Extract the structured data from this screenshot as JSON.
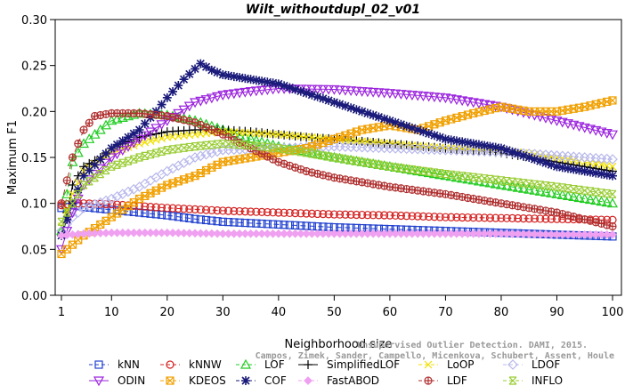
{
  "chart_data": {
    "type": "line",
    "title": "Wilt_withoutdupl_02_v01",
    "xlabel": "Neighborhood size",
    "ylabel": "Maximum F1",
    "xlim": [
      1,
      100
    ],
    "ylim": [
      0,
      0.3
    ],
    "xticks": [
      "1",
      "10",
      "20",
      "30",
      "40",
      "50",
      "60",
      "70",
      "80",
      "90",
      "100"
    ],
    "yticks": [
      "0.00",
      "0.05",
      "0.10",
      "0.15",
      "0.20",
      "0.25",
      "0.30"
    ],
    "grid": false,
    "legend_position": "bottom",
    "watermark": [
      "Unsupervised Outlier Detection. DAMI, 2015.",
      "Campos, Zimek, Sander, Campello, Micenkova, Schubert, Assent, Houle"
    ],
    "series": [
      {
        "name": "kNN",
        "color": "#1f3fcf",
        "dash": "6,4",
        "marker": "square",
        "points": [
          [
            1,
            0.095
          ],
          [
            2,
            0.096
          ],
          [
            3,
            0.098
          ],
          [
            5,
            0.096
          ],
          [
            10,
            0.093
          ],
          [
            15,
            0.09
          ],
          [
            20,
            0.087
          ],
          [
            25,
            0.083
          ],
          [
            30,
            0.08
          ],
          [
            40,
            0.077
          ],
          [
            50,
            0.074
          ],
          [
            60,
            0.072
          ],
          [
            70,
            0.07
          ],
          [
            80,
            0.068
          ],
          [
            90,
            0.066
          ],
          [
            100,
            0.064
          ]
        ]
      },
      {
        "name": "kNNW",
        "color": "#d42020",
        "dash": "6,4",
        "marker": "circle",
        "points": [
          [
            1,
            0.098
          ],
          [
            2,
            0.099
          ],
          [
            3,
            0.1
          ],
          [
            5,
            0.1
          ],
          [
            10,
            0.099
          ],
          [
            15,
            0.097
          ],
          [
            20,
            0.095
          ],
          [
            30,
            0.092
          ],
          [
            40,
            0.09
          ],
          [
            50,
            0.088
          ],
          [
            60,
            0.087
          ],
          [
            70,
            0.085
          ],
          [
            80,
            0.084
          ],
          [
            90,
            0.083
          ],
          [
            100,
            0.082
          ]
        ]
      },
      {
        "name": "LOF",
        "color": "#22cc22",
        "dash": "6,4",
        "marker": "triangle",
        "points": [
          [
            1,
            0.07
          ],
          [
            2,
            0.11
          ],
          [
            3,
            0.145
          ],
          [
            5,
            0.165
          ],
          [
            8,
            0.18
          ],
          [
            10,
            0.19
          ],
          [
            15,
            0.198
          ],
          [
            20,
            0.196
          ],
          [
            25,
            0.19
          ],
          [
            30,
            0.18
          ],
          [
            35,
            0.17
          ],
          [
            40,
            0.162
          ],
          [
            50,
            0.15
          ],
          [
            60,
            0.14
          ],
          [
            70,
            0.13
          ],
          [
            80,
            0.12
          ],
          [
            90,
            0.11
          ],
          [
            100,
            0.1
          ]
        ]
      },
      {
        "name": "SimplifiedLOF",
        "color": "#000000",
        "dash": "",
        "marker": "plus",
        "points": [
          [
            1,
            0.065
          ],
          [
            2,
            0.09
          ],
          [
            3,
            0.12
          ],
          [
            5,
            0.14
          ],
          [
            8,
            0.15
          ],
          [
            10,
            0.16
          ],
          [
            15,
            0.172
          ],
          [
            20,
            0.178
          ],
          [
            25,
            0.18
          ],
          [
            30,
            0.18
          ],
          [
            35,
            0.178
          ],
          [
            40,
            0.175
          ],
          [
            45,
            0.172
          ],
          [
            50,
            0.17
          ],
          [
            60,
            0.165
          ],
          [
            70,
            0.16
          ],
          [
            80,
            0.155
          ],
          [
            90,
            0.145
          ],
          [
            100,
            0.135
          ]
        ]
      },
      {
        "name": "LoOP",
        "color": "#f0e000",
        "dash": "6,4",
        "marker": "cross",
        "points": [
          [
            1,
            0.075
          ],
          [
            3,
            0.11
          ],
          [
            5,
            0.135
          ],
          [
            10,
            0.155
          ],
          [
            15,
            0.165
          ],
          [
            20,
            0.172
          ],
          [
            30,
            0.178
          ],
          [
            40,
            0.175
          ],
          [
            50,
            0.17
          ],
          [
            60,
            0.165
          ],
          [
            70,
            0.16
          ],
          [
            80,
            0.158
          ],
          [
            90,
            0.15
          ],
          [
            100,
            0.14
          ]
        ]
      },
      {
        "name": "LDOF",
        "color": "#b8b8ec",
        "dash": "6,4",
        "marker": "diamond",
        "points": [
          [
            1,
            0.07
          ],
          [
            3,
            0.085
          ],
          [
            5,
            0.095
          ],
          [
            10,
            0.105
          ],
          [
            15,
            0.118
          ],
          [
            20,
            0.135
          ],
          [
            25,
            0.15
          ],
          [
            30,
            0.158
          ],
          [
            40,
            0.16
          ],
          [
            50,
            0.162
          ],
          [
            60,
            0.16
          ],
          [
            70,
            0.158
          ],
          [
            80,
            0.156
          ],
          [
            90,
            0.152
          ],
          [
            100,
            0.148
          ]
        ]
      },
      {
        "name": "ODIN",
        "color": "#9a22dd",
        "dash": "",
        "marker": "invtriangle",
        "points": [
          [
            1,
            0.05
          ],
          [
            3,
            0.09
          ],
          [
            5,
            0.12
          ],
          [
            10,
            0.15
          ],
          [
            15,
            0.17
          ],
          [
            20,
            0.19
          ],
          [
            25,
            0.21
          ],
          [
            30,
            0.218
          ],
          [
            35,
            0.222
          ],
          [
            40,
            0.225
          ],
          [
            50,
            0.224
          ],
          [
            60,
            0.22
          ],
          [
            70,
            0.215
          ],
          [
            80,
            0.205
          ],
          [
            90,
            0.19
          ],
          [
            100,
            0.175
          ]
        ]
      },
      {
        "name": "KDEOS",
        "color": "#f0a000",
        "dash": "6,4",
        "marker": "squarex",
        "points": [
          [
            1,
            0.045
          ],
          [
            3,
            0.055
          ],
          [
            5,
            0.065
          ],
          [
            10,
            0.085
          ],
          [
            15,
            0.105
          ],
          [
            20,
            0.12
          ],
          [
            25,
            0.13
          ],
          [
            30,
            0.145
          ],
          [
            35,
            0.15
          ],
          [
            40,
            0.155
          ],
          [
            45,
            0.16
          ],
          [
            50,
            0.17
          ],
          [
            55,
            0.18
          ],
          [
            60,
            0.185
          ],
          [
            65,
            0.18
          ],
          [
            70,
            0.19
          ],
          [
            75,
            0.198
          ],
          [
            80,
            0.205
          ],
          [
            85,
            0.2
          ],
          [
            90,
            0.2
          ],
          [
            95,
            0.205
          ],
          [
            100,
            0.212
          ]
        ]
      },
      {
        "name": "COF",
        "color": "#1a1a7a",
        "dash": "6,4",
        "marker": "star",
        "points": [
          [
            1,
            0.065
          ],
          [
            3,
            0.1
          ],
          [
            5,
            0.13
          ],
          [
            10,
            0.16
          ],
          [
            15,
            0.18
          ],
          [
            18,
            0.2
          ],
          [
            20,
            0.215
          ],
          [
            23,
            0.235
          ],
          [
            26,
            0.252
          ],
          [
            28,
            0.245
          ],
          [
            30,
            0.24
          ],
          [
            35,
            0.235
          ],
          [
            40,
            0.23
          ],
          [
            45,
            0.22
          ],
          [
            50,
            0.21
          ],
          [
            55,
            0.2
          ],
          [
            60,
            0.19
          ],
          [
            65,
            0.18
          ],
          [
            70,
            0.17
          ],
          [
            75,
            0.165
          ],
          [
            80,
            0.16
          ],
          [
            85,
            0.15
          ],
          [
            90,
            0.14
          ],
          [
            95,
            0.135
          ],
          [
            100,
            0.13
          ]
        ]
      },
      {
        "name": "FastABOD",
        "color": "#f0a0f0",
        "dash": "6,4",
        "marker": "diamondfill",
        "points": [
          [
            1,
            0.065
          ],
          [
            5,
            0.067
          ],
          [
            10,
            0.068
          ],
          [
            20,
            0.068
          ],
          [
            30,
            0.067
          ],
          [
            40,
            0.067
          ],
          [
            50,
            0.067
          ],
          [
            60,
            0.067
          ],
          [
            70,
            0.067
          ],
          [
            80,
            0.067
          ],
          [
            90,
            0.066
          ],
          [
            100,
            0.066
          ]
        ]
      },
      {
        "name": "LDF",
        "color": "#b03030",
        "dash": "6,4",
        "marker": "circleplus",
        "points": [
          [
            1,
            0.1
          ],
          [
            3,
            0.15
          ],
          [
            5,
            0.18
          ],
          [
            7,
            0.195
          ],
          [
            10,
            0.198
          ],
          [
            15,
            0.198
          ],
          [
            20,
            0.195
          ],
          [
            25,
            0.188
          ],
          [
            30,
            0.175
          ],
          [
            35,
            0.16
          ],
          [
            40,
            0.145
          ],
          [
            45,
            0.135
          ],
          [
            50,
            0.128
          ],
          [
            60,
            0.118
          ],
          [
            70,
            0.11
          ],
          [
            80,
            0.1
          ],
          [
            90,
            0.09
          ],
          [
            100,
            0.075
          ]
        ]
      },
      {
        "name": "INFLO",
        "color": "#99cc33",
        "dash": "6,4",
        "marker": "hourglass",
        "points": [
          [
            1,
            0.08
          ],
          [
            3,
            0.1
          ],
          [
            5,
            0.12
          ],
          [
            10,
            0.14
          ],
          [
            15,
            0.15
          ],
          [
            20,
            0.158
          ],
          [
            25,
            0.162
          ],
          [
            30,
            0.165
          ],
          [
            35,
            0.163
          ],
          [
            40,
            0.16
          ],
          [
            50,
            0.15
          ],
          [
            60,
            0.14
          ],
          [
            70,
            0.132
          ],
          [
            80,
            0.125
          ],
          [
            90,
            0.118
          ],
          [
            100,
            0.11
          ]
        ]
      }
    ]
  }
}
